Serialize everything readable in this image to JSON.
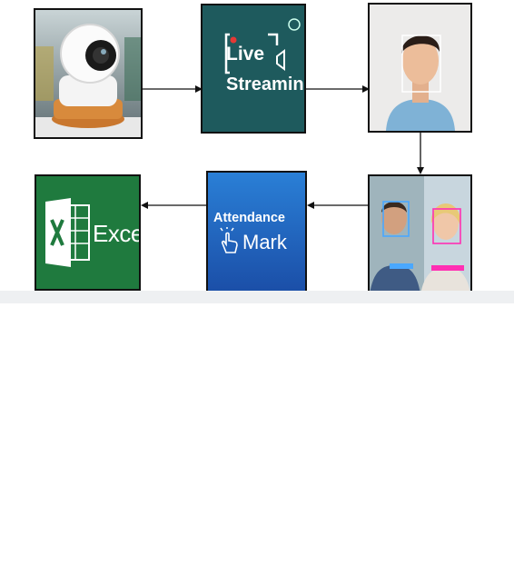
{
  "flow": {
    "camera": {
      "icon": "security-camera-icon"
    },
    "live_streaming": {
      "line1": "Live",
      "line2": "Streaming",
      "icon": "live-video-icon"
    },
    "face_detection": {
      "icon": "face-detection-icon"
    },
    "face_recognition": {
      "icon": "face-recognition-icon"
    },
    "attendance": {
      "line1": "Attendance",
      "line2": "Mark",
      "icon": "tap-hand-icon"
    },
    "excel": {
      "label": "Excel",
      "icon": "excel-icon"
    }
  },
  "colors": {
    "live_bg": "#1e5a5d",
    "attendance_top": "#2a7fd6",
    "attendance_bottom": "#1b4fa8",
    "excel_bg": "#1f7a3e",
    "arrow": "#111111"
  }
}
